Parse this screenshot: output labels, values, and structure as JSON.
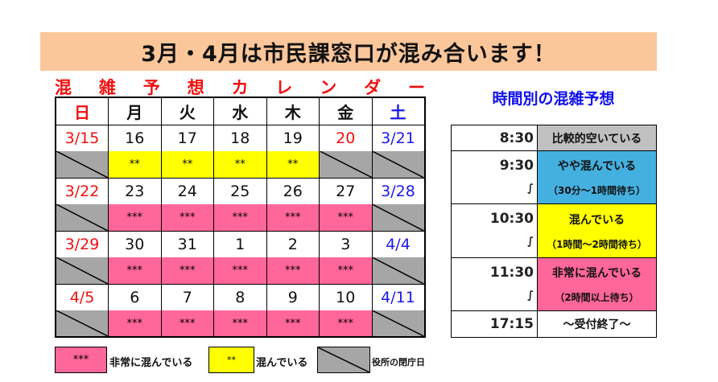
{
  "banner": "3月・4月は市民課窓口が混み合います！",
  "subtitle": [
    "混",
    "雑",
    "予",
    "想",
    "カ",
    "レ",
    "ン",
    "ダ",
    "ー"
  ],
  "colors": {
    "banner": "#fbc79a",
    "very_busy": "#ff6699",
    "busy": "#ffff00",
    "closed": "#a6a6a6",
    "moderate": "#44b0e0",
    "quiet": "#c0c0c0",
    "sunday": "#f01010",
    "saturday": "#1a1aee"
  },
  "weekdays": [
    {
      "label": "日",
      "color": "#f01010"
    },
    {
      "label": "月",
      "color": "#111"
    },
    {
      "label": "火",
      "color": "#111"
    },
    {
      "label": "水",
      "color": "#111"
    },
    {
      "label": "木",
      "color": "#111"
    },
    {
      "label": "金",
      "color": "#111"
    },
    {
      "label": "土",
      "color": "#1a1aee"
    }
  ],
  "weeks": [
    [
      {
        "date": "3/15",
        "color": "#f01010",
        "status": "closed",
        "mark": ""
      },
      {
        "date": "16",
        "color": "#111",
        "status": "busy",
        "mark": "**"
      },
      {
        "date": "17",
        "color": "#111",
        "status": "busy",
        "mark": "**"
      },
      {
        "date": "18",
        "color": "#111",
        "status": "busy",
        "mark": "**"
      },
      {
        "date": "19",
        "color": "#111",
        "status": "busy",
        "mark": "**"
      },
      {
        "date": "20",
        "color": "#f01010",
        "status": "closed",
        "mark": ""
      },
      {
        "date": "3/21",
        "color": "#1a1aee",
        "status": "closed",
        "mark": ""
      }
    ],
    [
      {
        "date": "3/22",
        "color": "#f01010",
        "status": "closed",
        "mark": ""
      },
      {
        "date": "23",
        "color": "#111",
        "status": "very",
        "mark": "***"
      },
      {
        "date": "24",
        "color": "#111",
        "status": "very",
        "mark": "***"
      },
      {
        "date": "25",
        "color": "#111",
        "status": "very",
        "mark": "***"
      },
      {
        "date": "26",
        "color": "#111",
        "status": "very",
        "mark": "***"
      },
      {
        "date": "27",
        "color": "#111",
        "status": "very",
        "mark": "***"
      },
      {
        "date": "3/28",
        "color": "#1a1aee",
        "status": "closed",
        "mark": ""
      }
    ],
    [
      {
        "date": "3/29",
        "color": "#f01010",
        "status": "closed",
        "mark": ""
      },
      {
        "date": "30",
        "color": "#111",
        "status": "very",
        "mark": "***"
      },
      {
        "date": "31",
        "color": "#111",
        "status": "very",
        "mark": "***"
      },
      {
        "date": "1",
        "color": "#111",
        "status": "very",
        "mark": "***"
      },
      {
        "date": "2",
        "color": "#111",
        "status": "very",
        "mark": "***"
      },
      {
        "date": "3",
        "color": "#111",
        "status": "very",
        "mark": "***"
      },
      {
        "date": "4/4",
        "color": "#1a1aee",
        "status": "closed",
        "mark": ""
      }
    ],
    [
      {
        "date": "4/5",
        "color": "#f01010",
        "status": "closed",
        "mark": ""
      },
      {
        "date": "6",
        "color": "#111",
        "status": "very",
        "mark": "***"
      },
      {
        "date": "7",
        "color": "#111",
        "status": "very",
        "mark": "***"
      },
      {
        "date": "8",
        "color": "#111",
        "status": "very",
        "mark": "***"
      },
      {
        "date": "9",
        "color": "#111",
        "status": "very",
        "mark": "***"
      },
      {
        "date": "10",
        "color": "#111",
        "status": "very",
        "mark": "***"
      },
      {
        "date": "4/11",
        "color": "#1a1aee",
        "status": "closed",
        "mark": ""
      }
    ]
  ],
  "time_forecast": {
    "title": "時間別の混雑予想",
    "rows": [
      {
        "time": "8:30",
        "label": "比較的空いている",
        "note": "",
        "color": "#c0c0c0"
      },
      {
        "time": "9:30",
        "label": "やや混んでいる",
        "note": "（30分～1時間待ち）",
        "color": "#44b0e0"
      },
      {
        "time": "10:30",
        "label": "混んでいる",
        "note": "（1時間～2時間待ち）",
        "color": "#ffff00"
      },
      {
        "time": "11:30",
        "label": "非常に混んでいる",
        "note": "（2時間以上待ち）",
        "color": "#ff6699"
      },
      {
        "time": "17:15",
        "label": "～受付終了～",
        "note": "",
        "color": "#ffffff"
      }
    ],
    "tilde": "∫"
  },
  "legend": {
    "very_mark": "***",
    "very_label": "非常に混んでいる",
    "busy_mark": "**",
    "busy_label": "混んでいる",
    "closed_label": "役所の閉庁日"
  }
}
